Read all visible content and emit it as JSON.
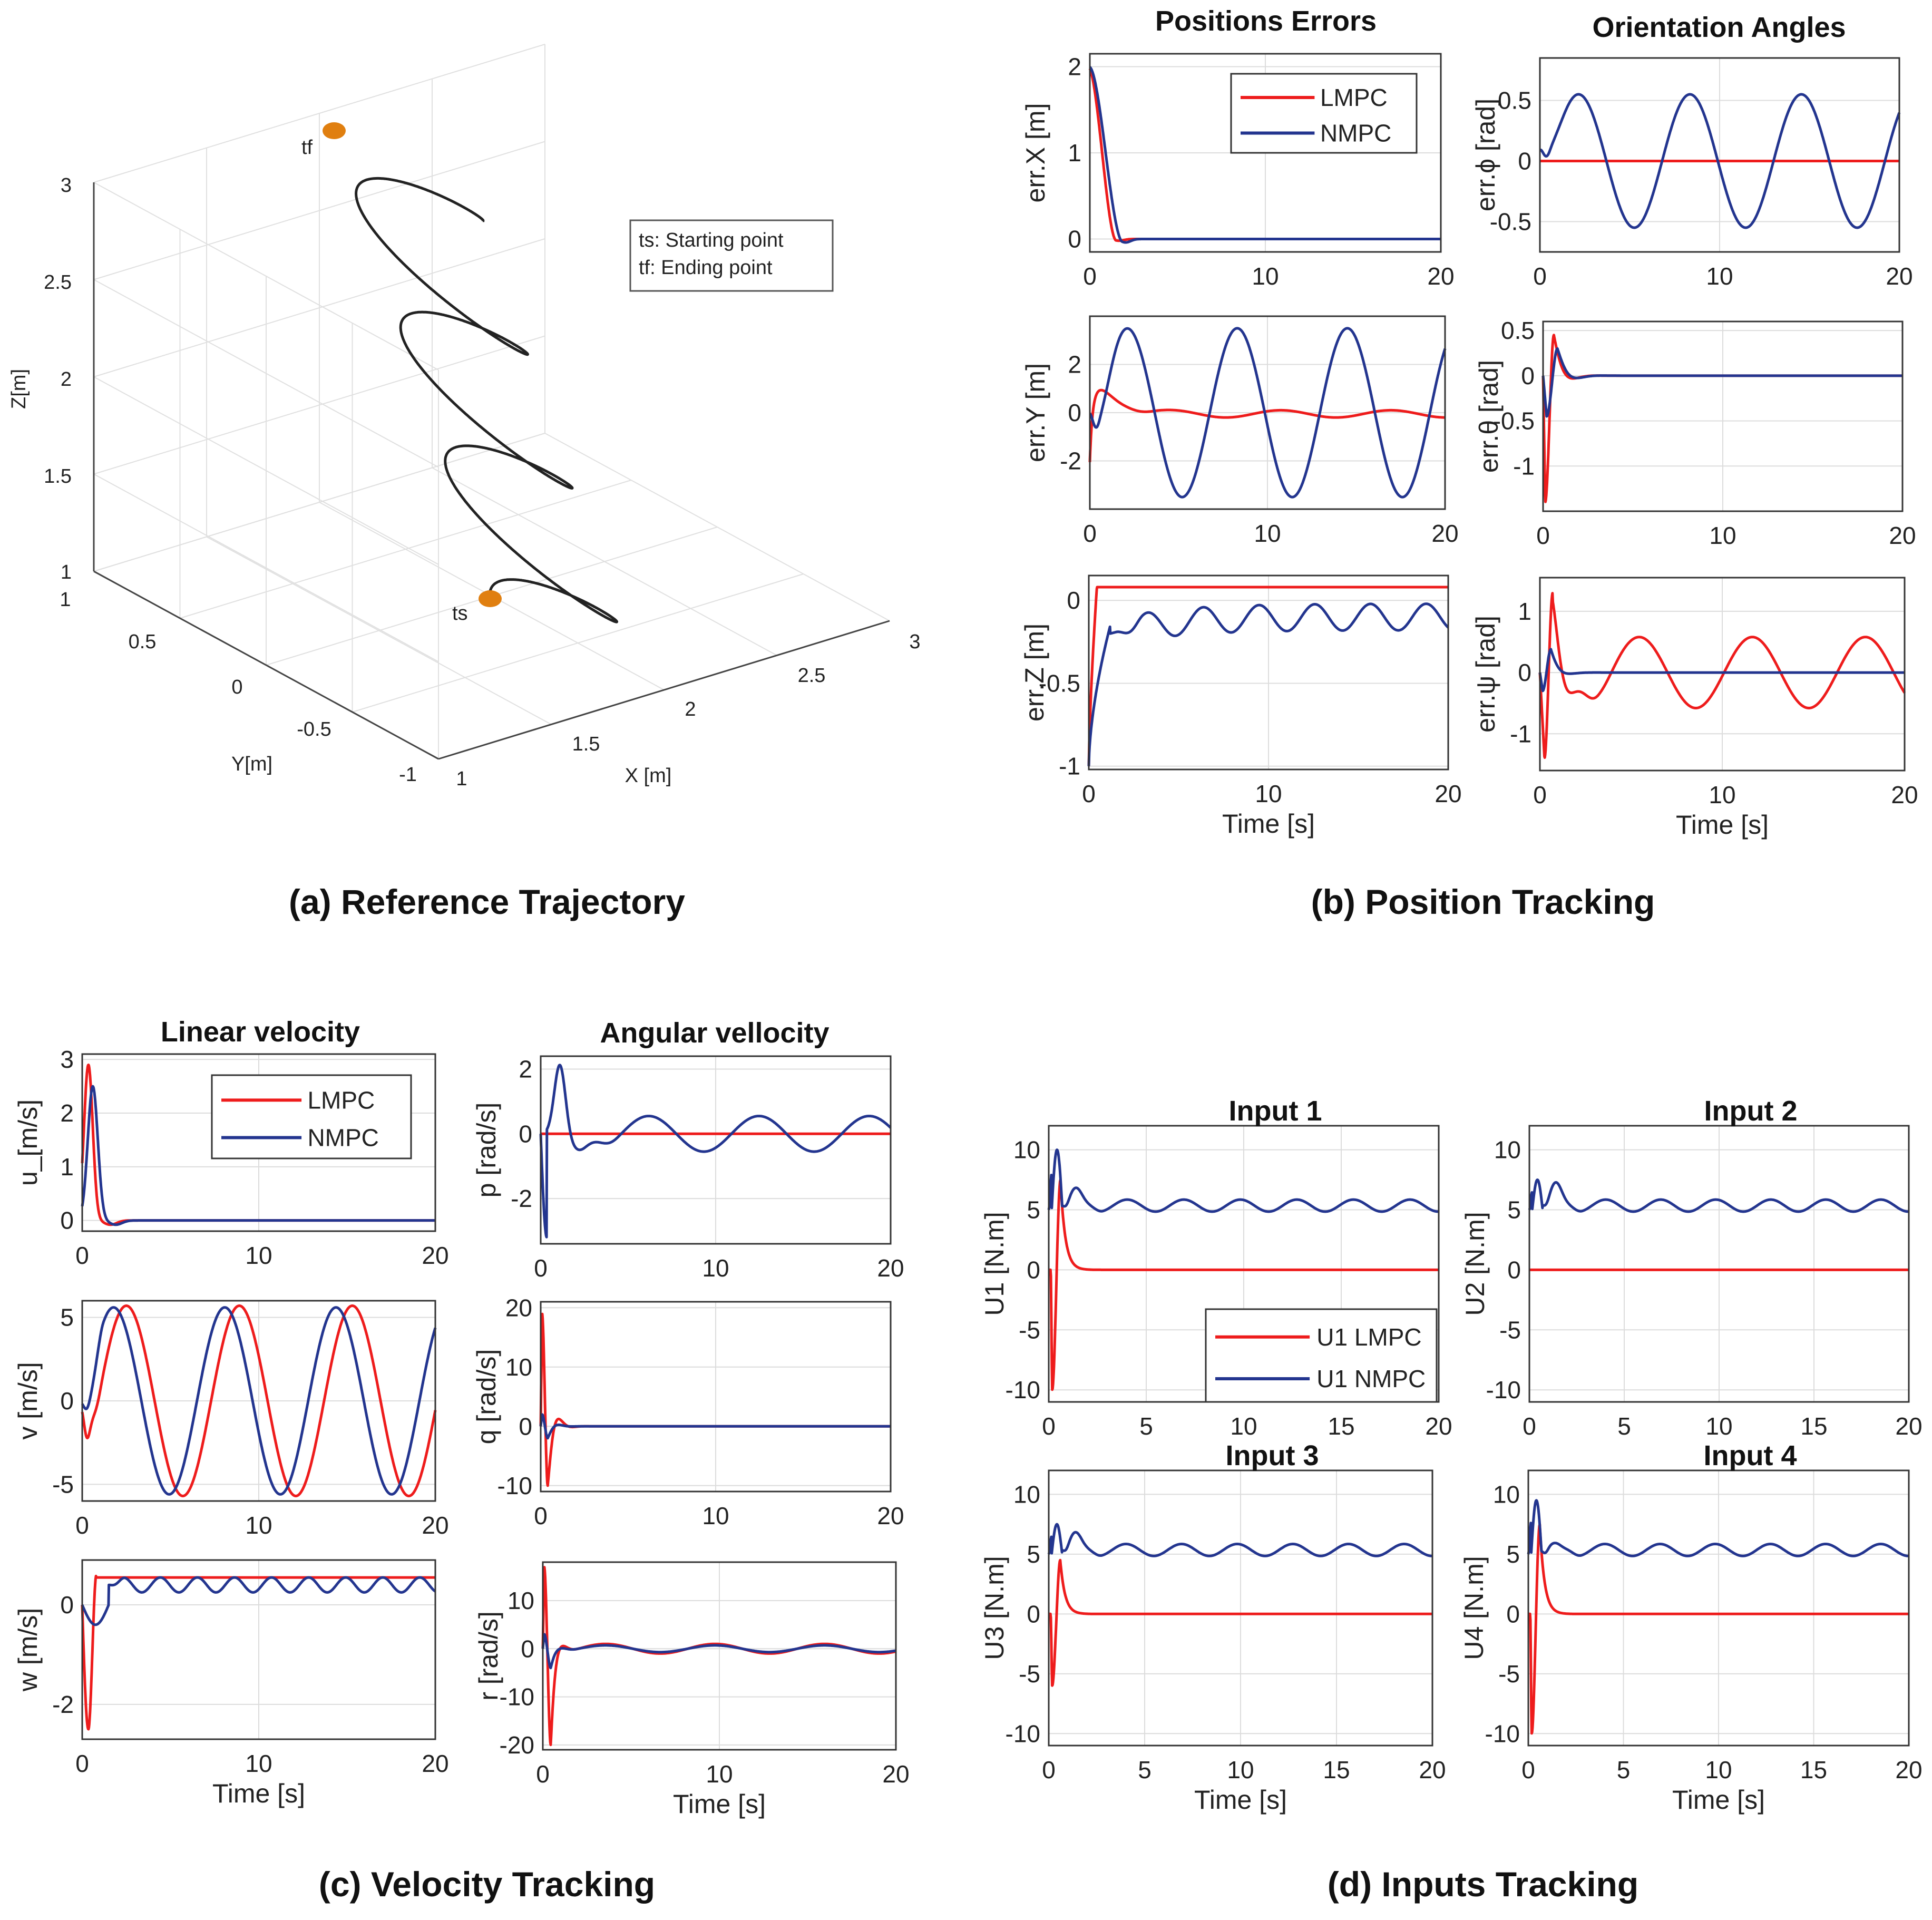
{
  "captions": {
    "a": "(a) Reference Trajectory",
    "b": "(b) Position Tracking",
    "c": "(c) Velocity Tracking",
    "d": "(d) Inputs Tracking"
  },
  "titles": {
    "pos_errors": "Positions Errors",
    "orient": "Orientation Angles",
    "lin_vel": "Linear velocity",
    "ang_vel": "Angular vellocity",
    "in1": "Input 1",
    "in2": "Input 2",
    "in3": "Input 3",
    "in4": "Input 4"
  },
  "colors": {
    "lmpc": "#ee1c1c",
    "nmpc": "#23358f",
    "traj": "#222222",
    "marker": "#e07f10"
  },
  "trajectory": {
    "zlabel": "Z[m]",
    "ylabel": "Y[m]",
    "xlabel": "X [m]",
    "z_ticks": [
      "3",
      "2.5",
      "2",
      "1.5",
      "1"
    ],
    "y_ticks": [
      "1",
      "0.5",
      "0",
      "-0.5",
      "-1"
    ],
    "x_ticks": [
      "1",
      "1.5",
      "2",
      "2.5",
      "3"
    ],
    "start_label": "ts",
    "end_label": "tf",
    "legend": [
      "ts: Starting point",
      "tf:  Ending point"
    ]
  },
  "chart_data": [
    {
      "id": "errX",
      "type": "line",
      "title": "Positions Errors",
      "ylabel": "err.X [m]",
      "xlim": [
        0,
        20
      ],
      "ylim": [
        -0.15,
        2.15
      ],
      "yticks": [
        0,
        1,
        2
      ],
      "xticks": [
        0,
        10,
        20
      ],
      "legend": [
        "LMPC",
        "NMPC"
      ],
      "series": [
        {
          "name": "LMPC",
          "color": "#ee1c1c",
          "fn": "rel",
          "p": [
            2,
            0,
            0.7,
            1.6,
            0,
            0,
            0.02
          ]
        },
        {
          "name": "NMPC",
          "color": "#23358f",
          "fn": "rel",
          "p": [
            2,
            0,
            0.9,
            1.9,
            0,
            0,
            0.04
          ]
        }
      ]
    },
    {
      "id": "errPhi",
      "type": "line",
      "title": "Orientation Angles",
      "ylabel": "err.ϕ [rad]",
      "xlim": [
        0,
        20
      ],
      "ylim": [
        -0.75,
        0.85
      ],
      "yticks": [
        -0.5,
        0,
        0.5
      ],
      "xticks": [
        0,
        10,
        20
      ],
      "series": [
        {
          "name": "LMPC",
          "color": "#ee1c1c",
          "fn": "const",
          "p": [
            0
          ]
        },
        {
          "name": "NMPC",
          "color": "#23358f",
          "fn": "osc",
          "p": [
            0.55,
            6.2,
            0.6,
            0.8,
            0.35,
            0.6
          ]
        }
      ]
    },
    {
      "id": "errY",
      "type": "line",
      "ylabel": "err.Y [m]",
      "xlim": [
        0,
        20
      ],
      "ylim": [
        -4.0,
        4.0
      ],
      "yticks": [
        -2,
        0,
        2
      ],
      "xticks": [
        0,
        10,
        20
      ],
      "series": [
        {
          "name": "LMPC",
          "color": "#ee1c1c",
          "fn": "ylmpc",
          "p": [
            1
          ]
        },
        {
          "name": "NMPC",
          "color": "#23358f",
          "fn": "osc",
          "p": [
            3.5,
            6.2,
            0.55,
            2.7,
            0.9,
            0.6
          ]
        }
      ]
    },
    {
      "id": "errTheta",
      "type": "line",
      "ylabel": "err.θ [rad]",
      "xlim": [
        0,
        20
      ],
      "ylim": [
        -1.5,
        0.6
      ],
      "yticks": [
        -1,
        -0.5,
        0,
        0.5
      ],
      "xticks": [
        0,
        10,
        20
      ],
      "series": [
        {
          "name": "LMPC",
          "color": "#ee1c1c",
          "fn": "spike",
          "p": [
            -1.4,
            0.12,
            0.45,
            0.6,
            0.8,
            2.2
          ]
        },
        {
          "name": "NMPC",
          "color": "#23358f",
          "fn": "spike",
          "p": [
            -0.45,
            0.2,
            0.3,
            0.8,
            0.7,
            2.0
          ]
        }
      ]
    },
    {
      "id": "errZ",
      "type": "line",
      "ylabel": "err.Z [m]",
      "xlim": [
        0,
        20
      ],
      "ylim": [
        -1.02,
        0.15
      ],
      "yticks": [
        -1,
        -0.5,
        0
      ],
      "xticks": [
        0,
        10,
        20
      ],
      "xlabel": "Time [s]",
      "series": [
        {
          "name": "LMPC",
          "color": "#ee1c1c",
          "fn": "step",
          "p": [
            -1,
            0.08,
            0.45
          ]
        },
        {
          "name": "NMPC",
          "color": "#23358f",
          "fn": "zn",
          "p": [
            1
          ]
        }
      ]
    },
    {
      "id": "errPsi",
      "type": "line",
      "ylabel": "err.ψ [rad]",
      "xlim": [
        0,
        20
      ],
      "ylim": [
        -1.6,
        1.55
      ],
      "yticks": [
        -1,
        0,
        1
      ],
      "xticks": [
        0,
        10,
        20
      ],
      "xlabel": "Time [s]",
      "series": [
        {
          "name": "LMPC",
          "color": "#ee1c1c",
          "fn": "psil",
          "p": [
            1
          ]
        },
        {
          "name": "NMPC",
          "color": "#23358f",
          "fn": "spike",
          "p": [
            -0.3,
            0.15,
            0.38,
            0.6,
            0.6,
            2.5
          ]
        }
      ]
    },
    {
      "id": "velU",
      "type": "line",
      "title": "Linear velocity",
      "ylabel": "u_[m/s]",
      "xlim": [
        0,
        20
      ],
      "ylim": [
        -0.2,
        3.1
      ],
      "yticks": [
        0,
        1,
        2,
        3
      ],
      "xticks": [
        0,
        10,
        20
      ],
      "legend": [
        "LMPC",
        "NMPC"
      ],
      "series": [
        {
          "name": "LMPC",
          "color": "#ee1c1c",
          "fn": "bump",
          "p": [
            2.9,
            0.35,
            0.35,
            1.6
          ]
        },
        {
          "name": "NMPC",
          "color": "#23358f",
          "fn": "bump",
          "p": [
            2.5,
            0.6,
            0.4,
            1.9
          ]
        }
      ]
    },
    {
      "id": "velP",
      "type": "line",
      "title": "Angular vellocity",
      "ylabel": "p [rad/s]",
      "xlim": [
        0,
        20
      ],
      "ylim": [
        -3.4,
        2.4
      ],
      "yticks": [
        -2,
        0,
        2
      ],
      "xticks": [
        0,
        10,
        20
      ],
      "series": [
        {
          "name": "LMPC",
          "color": "#ee1c1c",
          "fn": "const",
          "p": [
            0
          ]
        },
        {
          "name": "NMPC",
          "color": "#23358f",
          "fn": "pn",
          "p": [
            1
          ]
        }
      ]
    },
    {
      "id": "velV",
      "type": "line",
      "ylabel": "v [m/s]",
      "xlim": [
        0,
        20
      ],
      "ylim": [
        -6.0,
        6.0
      ],
      "yticks": [
        -5,
        0,
        5
      ],
      "xticks": [
        0,
        10,
        20
      ],
      "series": [
        {
          "name": "LMPC",
          "color": "#ee1c1c",
          "fn": "vel",
          "p": [
            5.7,
            6.4,
            0.9,
            0,
            -1.8
          ]
        },
        {
          "name": "NMPC",
          "color": "#23358f",
          "fn": "vel",
          "p": [
            5.6,
            6.3,
            0.2,
            0,
            -0.5
          ]
        }
      ]
    },
    {
      "id": "velQ",
      "type": "line",
      "ylabel": "q [rad/s]",
      "xlim": [
        0,
        20
      ],
      "ylim": [
        -11,
        21
      ],
      "yticks": [
        -10,
        0,
        10,
        20
      ],
      "xticks": [
        0,
        10,
        20
      ],
      "series": [
        {
          "name": "LMPC",
          "color": "#ee1c1c",
          "fn": "qs",
          "p": [
            19,
            -10
          ]
        },
        {
          "name": "NMPC",
          "color": "#23358f",
          "fn": "qs",
          "p": [
            2,
            -2
          ]
        }
      ]
    },
    {
      "id": "velW",
      "type": "line",
      "ylabel": "w [m/s]",
      "xlim": [
        0,
        20
      ],
      "ylim": [
        -2.7,
        0.9
      ],
      "yticks": [
        -2,
        0
      ],
      "xticks": [
        0,
        10,
        20
      ],
      "xlabel": "Time [s]",
      "series": [
        {
          "name": "LMPC",
          "color": "#ee1c1c",
          "fn": "wl",
          "p": [
            1
          ]
        },
        {
          "name": "NMPC",
          "color": "#23358f",
          "fn": "wn",
          "p": [
            1
          ]
        }
      ]
    },
    {
      "id": "velR",
      "type": "line",
      "ylabel": "r [rad/s]",
      "xlim": [
        0,
        20
      ],
      "ylim": [
        -21,
        18
      ],
      "yticks": [
        -20,
        -10,
        0,
        10
      ],
      "xticks": [
        0,
        10,
        20
      ],
      "xlabel": "Time [s]",
      "series": [
        {
          "name": "LMPC",
          "color": "#ee1c1c",
          "fn": "rs",
          "p": [
            17,
            -20,
            1.0
          ]
        },
        {
          "name": "NMPC",
          "color": "#23358f",
          "fn": "rs",
          "p": [
            3,
            -4,
            0.7
          ]
        }
      ]
    },
    {
      "id": "in1",
      "type": "line",
      "title": "Input 1",
      "ylabel": "U1 [N.m]",
      "xlim": [
        0,
        20
      ],
      "ylim": [
        -11,
        12
      ],
      "yticks": [
        -10,
        -5,
        0,
        5,
        10
      ],
      "xticks": [
        0,
        5,
        10,
        15,
        20
      ],
      "legend": [
        "U1 LMPC",
        "U1 NMPC"
      ],
      "series": [
        {
          "name": "U1 LMPC",
          "color": "#ee1c1c",
          "fn": "inl",
          "p": [
            -10,
            7.5,
            0
          ]
        },
        {
          "name": "U1 NMPC",
          "color": "#23358f",
          "fn": "inn",
          "p": [
            10,
            7
          ]
        }
      ]
    },
    {
      "id": "in2",
      "type": "line",
      "title": "Input 2",
      "ylabel": "U2 [N.m]",
      "xlim": [
        0,
        20
      ],
      "ylim": [
        -11,
        12
      ],
      "yticks": [
        -10,
        -5,
        0,
        5,
        10
      ],
      "xticks": [
        0,
        5,
        10,
        15,
        20
      ],
      "series": [
        {
          "name": "LMPC",
          "color": "#ee1c1c",
          "fn": "const",
          "p": [
            0
          ]
        },
        {
          "name": "NMPC",
          "color": "#23358f",
          "fn": "inn",
          "p": [
            7.5,
            7.5
          ]
        }
      ]
    },
    {
      "id": "in3",
      "type": "line",
      "title": "Input 3",
      "ylabel": "U3 [N.m]",
      "xlim": [
        0,
        20
      ],
      "ylim": [
        -11,
        12
      ],
      "yticks": [
        -10,
        -5,
        0,
        5,
        10
      ],
      "xticks": [
        0,
        5,
        10,
        15,
        20
      ],
      "xlabel": "Time [s]",
      "series": [
        {
          "name": "LMPC",
          "color": "#ee1c1c",
          "fn": "inl",
          "p": [
            -6,
            4.5,
            0
          ]
        },
        {
          "name": "NMPC",
          "color": "#23358f",
          "fn": "inn",
          "p": [
            7.5,
            7
          ]
        }
      ]
    },
    {
      "id": "in4",
      "type": "line",
      "title": "Input 4",
      "ylabel": "U4 [N.m]",
      "xlim": [
        0,
        20
      ],
      "ylim": [
        -11,
        12
      ],
      "yticks": [
        -10,
        -5,
        0,
        5,
        10
      ],
      "xticks": [
        0,
        5,
        10,
        15,
        20
      ],
      "xlabel": "Time [s]",
      "series": [
        {
          "name": "LMPC",
          "color": "#ee1c1c",
          "fn": "inl",
          "p": [
            -10,
            7.5,
            0
          ]
        },
        {
          "name": "NMPC",
          "color": "#23358f",
          "fn": "inn",
          "p": [
            9.5,
            6
          ]
        }
      ]
    }
  ]
}
